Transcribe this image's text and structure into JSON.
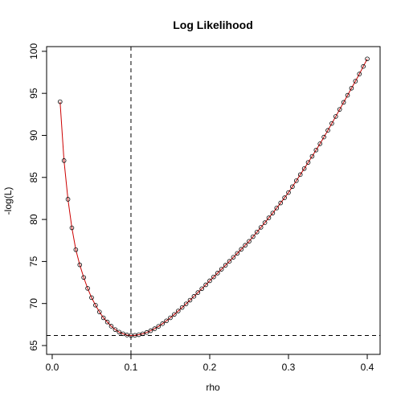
{
  "chart_data": {
    "type": "line",
    "title": "Log Likelihood",
    "x_label": "rho",
    "y_label": "-log(L)",
    "x": [
      0.01,
      0.015,
      0.02,
      0.025,
      0.03,
      0.035,
      0.04,
      0.045,
      0.05,
      0.055,
      0.06,
      0.065,
      0.07,
      0.075,
      0.08,
      0.085,
      0.09,
      0.095,
      0.1,
      0.105,
      0.11,
      0.115,
      0.12,
      0.125,
      0.13,
      0.135,
      0.14,
      0.145,
      0.15,
      0.155,
      0.16,
      0.165,
      0.17,
      0.175,
      0.18,
      0.185,
      0.19,
      0.195,
      0.2,
      0.205,
      0.21,
      0.215,
      0.22,
      0.225,
      0.23,
      0.235,
      0.24,
      0.245,
      0.25,
      0.255,
      0.26,
      0.265,
      0.27,
      0.275,
      0.28,
      0.285,
      0.29,
      0.295,
      0.3,
      0.305,
      0.31,
      0.315,
      0.32,
      0.325,
      0.33,
      0.335,
      0.34,
      0.345,
      0.35,
      0.355,
      0.36,
      0.365,
      0.37,
      0.375,
      0.38,
      0.385,
      0.39,
      0.395,
      0.4
    ],
    "series": [
      {
        "color": "#cc0000",
        "marker_color": "#000000",
        "values": [
          94.0,
          87.0,
          82.4,
          79.0,
          76.4,
          74.6,
          73.1,
          71.8,
          70.7,
          69.8,
          69.0,
          68.3,
          67.8,
          67.3,
          66.9,
          66.6,
          66.4,
          66.25,
          66.2,
          66.22,
          66.29,
          66.4,
          66.56,
          66.76,
          67.0,
          67.28,
          67.6,
          67.94,
          68.3,
          68.7,
          69.11,
          69.53,
          69.96,
          70.4,
          70.85,
          71.3,
          71.76,
          72.22,
          72.7,
          73.16,
          73.62,
          74.08,
          74.55,
          75.02,
          75.5,
          75.97,
          76.45,
          76.93,
          77.4,
          77.95,
          78.5,
          79.06,
          79.62,
          80.19,
          80.76,
          81.36,
          81.96,
          82.58,
          83.2,
          83.9,
          84.61,
          85.33,
          86.05,
          86.78,
          87.51,
          88.25,
          89.0,
          89.8,
          90.6,
          91.42,
          92.25,
          93.09,
          93.93,
          94.77,
          95.61,
          96.45,
          97.3,
          98.2,
          99.1
        ]
      }
    ],
    "vline": 0.1,
    "hline": 66.2,
    "xlim": [
      -0.0071,
      0.4163
    ],
    "ylim": [
      63.95,
      100.56
    ],
    "xticks": [
      {
        "value": 0,
        "label": "0.0"
      },
      0.1,
      0.2,
      0.3,
      0.4
    ],
    "yticks": [
      65,
      70,
      75,
      80,
      85,
      90,
      95,
      100
    ]
  }
}
